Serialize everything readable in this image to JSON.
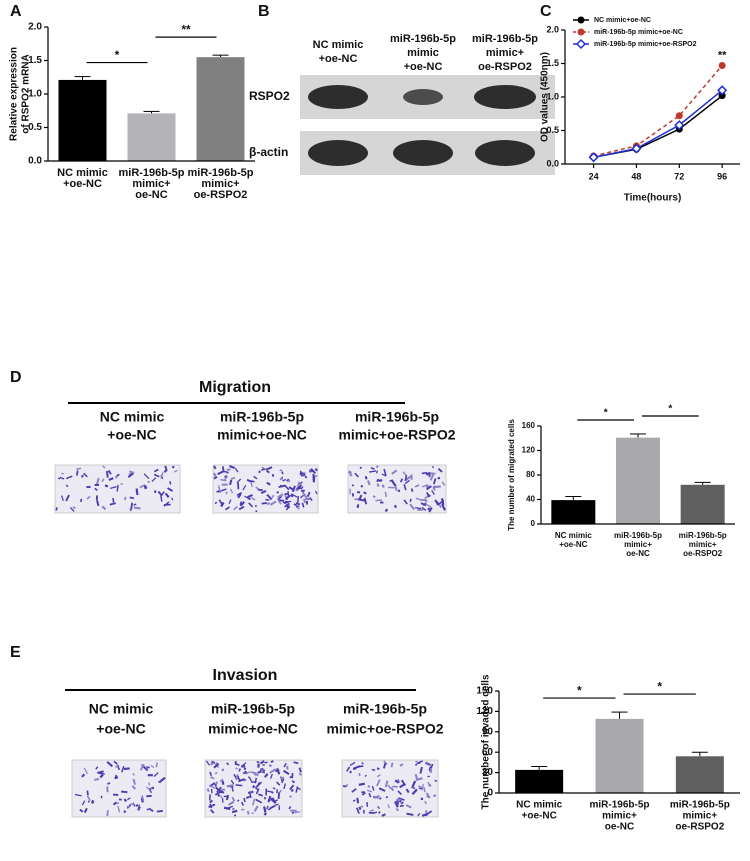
{
  "panel_labels": [
    "A",
    "B",
    "C",
    "D",
    "E"
  ],
  "western_blot": {
    "lanes": [
      [
        "NC mimic",
        "+oe-NC"
      ],
      [
        "miR-196b-5p",
        "mimic",
        "+oe-NC"
      ],
      [
        "miR-196b-5p",
        "mimic+",
        "oe-RSPO2"
      ]
    ],
    "rows": [
      "RSPO2",
      "β-actin"
    ]
  },
  "migration": {
    "title": "Migration",
    "columns": [
      [
        "NC mimic",
        "+oe-NC"
      ],
      [
        "miR-196b-5p",
        "mimic+oe-NC"
      ],
      [
        "miR-196b-5p",
        "mimic+oe-RSPO2"
      ]
    ]
  },
  "invasion": {
    "title": "Invasion",
    "columns": [
      [
        "NC mimic",
        "+oe-NC"
      ],
      [
        "miR-196b-5p",
        "mimic+oe-NC"
      ],
      [
        "miR-196b-5p",
        "mimic+oe-RSPO2"
      ]
    ]
  },
  "chart_data": [
    {
      "type": "bar",
      "y_label": [
        "Relative expression",
        "of RSPO2 mRNA"
      ],
      "categories": [
        [
          "NC mimic",
          "+oe-NC"
        ],
        [
          "miR-196b-5p",
          "mimic+",
          "oe-NC"
        ],
        [
          "miR-196b-5p",
          "mimic+",
          "oe-RSPO2"
        ]
      ],
      "values": [
        1.21,
        0.71,
        1.55
      ],
      "errors": [
        0.05,
        0.03,
        0.03
      ],
      "colors": [
        "#000000",
        "#b3b3b8",
        "#808080"
      ],
      "ylim": [
        0,
        2.0
      ],
      "yticks": [
        {
          "value": 0,
          "label": "0.0"
        },
        {
          "value": 0.5,
          "label": "0.5"
        },
        {
          "value": 1.0,
          "label": "1.0"
        },
        {
          "value": 1.5,
          "label": "1.5"
        },
        {
          "value": 2.0,
          "label": "2.0"
        }
      ],
      "annotations": [
        {
          "text": "*",
          "categories": [
            0,
            1
          ]
        },
        {
          "text": "**",
          "categories": [
            1,
            2
          ]
        }
      ]
    },
    {
      "type": "line",
      "x_label": "Time(hours)",
      "y_label": "OD values (450nm)",
      "x": [
        24,
        48,
        72,
        96
      ],
      "xlim": [
        8,
        106
      ],
      "xticks": [
        24,
        48,
        72,
        96
      ],
      "ylim": [
        0,
        2.0
      ],
      "yticks": [
        {
          "value": 0,
          "label": "0.0"
        },
        {
          "value": 0.5,
          "label": "0.5"
        },
        {
          "value": 1.0,
          "label": "1.0"
        },
        {
          "value": 1.5,
          "label": "1.5"
        },
        {
          "value": 2.0,
          "label": "2.0"
        }
      ],
      "series": [
        {
          "name": "NC mimic+oe-NC",
          "color": "#000000",
          "values": [
            0.1,
            0.22,
            0.52,
            1.02
          ]
        },
        {
          "name": "miR-196b-5p mimic+oe-NC",
          "color": "#c0392b",
          "values": [
            0.12,
            0.27,
            0.72,
            1.47
          ]
        },
        {
          "name": "miR-196b-5p mimic+oe-RSPO2",
          "color": "#1f2fd0",
          "values": [
            0.1,
            0.23,
            0.58,
            1.1
          ]
        }
      ],
      "annotations": [
        {
          "text": "**",
          "x": 96
        }
      ]
    },
    {
      "type": "bar",
      "y_label": "The number of migrated cells",
      "categories": [
        [
          "NC mimic",
          "+oe-NC"
        ],
        [
          "miR-196b-5p",
          "mimic+",
          "oe-NC"
        ],
        [
          "miR-196b-5p",
          "mimic+",
          "oe-RSPO2"
        ]
      ],
      "values": [
        39,
        141,
        64
      ],
      "errors": [
        6,
        6,
        4
      ],
      "colors": [
        "#000000",
        "#a9a9ad",
        "#5f5f5f"
      ],
      "ylim": [
        0,
        160
      ],
      "yticks": [
        0,
        40,
        80,
        120,
        160
      ],
      "annotations": [
        {
          "text": "*",
          "categories": [
            0,
            1
          ]
        },
        {
          "text": "*",
          "categories": [
            1,
            2
          ]
        }
      ]
    },
    {
      "type": "bar",
      "y_label": "The number of invaded cells",
      "categories": [
        [
          "NC mimic",
          "+oe-NC"
        ],
        [
          "miR-196b-5p",
          "mimic+",
          "oe-NC"
        ],
        [
          "miR-196b-5p",
          "mimic+",
          "oe-RSPO2"
        ]
      ],
      "values": [
        34,
        109,
        54
      ],
      "errors": [
        5,
        10,
        6
      ],
      "colors": [
        "#000000",
        "#a9a9ad",
        "#5f5f5f"
      ],
      "ylim": [
        0,
        150
      ],
      "yticks": [
        0,
        30,
        60,
        90,
        120,
        150
      ],
      "annotations": [
        {
          "text": "*",
          "categories": [
            0,
            1
          ]
        },
        {
          "text": "*",
          "categories": [
            1,
            2
          ]
        }
      ]
    }
  ]
}
